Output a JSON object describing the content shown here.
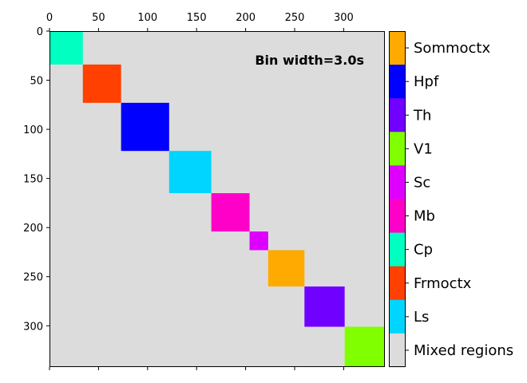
{
  "chart_data": {
    "type": "heatmap",
    "annotation": "Bin width=3.0s",
    "background_category": "Mixed regions",
    "background_color": "#dcdcdc",
    "xlim": [
      0,
      342
    ],
    "ylim": [
      0,
      342
    ],
    "x_ticks": [
      0,
      50,
      100,
      150,
      200,
      250,
      300
    ],
    "y_ticks": [
      0,
      50,
      100,
      150,
      200,
      250,
      300
    ],
    "x_tick_position": "top",
    "blocks": [
      {
        "region": "Cp",
        "start": 0,
        "end": 34
      },
      {
        "region": "Frmoctx",
        "start": 34,
        "end": 73
      },
      {
        "region": "Hpf",
        "start": 73,
        "end": 122
      },
      {
        "region": "Ls",
        "start": 122,
        "end": 165
      },
      {
        "region": "Mb",
        "start": 165,
        "end": 204
      },
      {
        "region": "Sc",
        "start": 204,
        "end": 223
      },
      {
        "region": "Sommoctx",
        "start": 223,
        "end": 260
      },
      {
        "region": "Th",
        "start": 260,
        "end": 301
      },
      {
        "region": "V1",
        "start": 301,
        "end": 342
      }
    ],
    "legend_position": "right",
    "legend": [
      {
        "label": "Sommoctx",
        "color": "#ffaa00"
      },
      {
        "label": "Hpf",
        "color": "#0000ff"
      },
      {
        "label": "Th",
        "color": "#7000ff"
      },
      {
        "label": "V1",
        "color": "#80ff00"
      },
      {
        "label": "Sc",
        "color": "#dd00ff"
      },
      {
        "label": "Mb",
        "color": "#ff00c8"
      },
      {
        "label": "Cp",
        "color": "#00ffc0"
      },
      {
        "label": "Frmoctx",
        "color": "#ff4000"
      },
      {
        "label": "Ls",
        "color": "#00d5ff"
      },
      {
        "label": "Mixed regions",
        "color": "#dcdcdc"
      }
    ]
  }
}
